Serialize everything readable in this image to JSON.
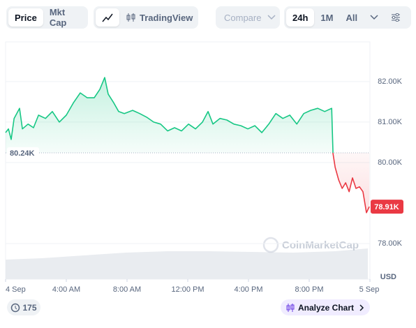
{
  "toolbar": {
    "price": "Price",
    "mkt_cap": "Mkt Cap",
    "tradingview": "TradingView",
    "compare": "Compare",
    "range_24h": "24h",
    "range_1m": "1M",
    "range_all": "All"
  },
  "footer": {
    "count": "175",
    "analyze": "Analyze Chart"
  },
  "chart_data": {
    "type": "line",
    "watermark": "CoinMarketCap",
    "y_unit": "USD",
    "x": [
      0,
      0.19,
      0.37,
      0.56,
      0.92,
      1.11,
      1.48,
      1.84,
      2.17,
      2.63,
      3.08,
      3.54,
      4.0,
      4.46,
      4.92,
      5.38,
      5.84,
      6.21,
      6.53,
      6.76,
      7.13,
      7.45,
      7.82,
      8.37,
      8.83,
      9.29,
      9.75,
      10.21,
      10.67,
      11.13,
      11.59,
      12.05,
      12.51,
      12.97,
      13.34,
      13.66,
      14.12,
      14.58,
      15.04,
      15.5,
      15.96,
      16.42,
      16.88,
      17.34,
      17.8,
      18.26,
      18.72,
      19.18,
      19.64,
      20.1,
      20.56,
      21.02,
      21.48,
      21.57,
      21.71,
      21.94,
      22.17,
      22.4,
      22.63,
      22.85,
      23.08,
      23.31,
      23.54,
      23.77,
      23.96
    ],
    "values": [
      80740,
      80830,
      80570,
      81090,
      81340,
      80830,
      80950,
      80860,
      81170,
      81090,
      81260,
      81000,
      81170,
      81470,
      81720,
      81600,
      81600,
      81810,
      82100,
      81690,
      81470,
      81260,
      81210,
      81290,
      81210,
      81120,
      81000,
      80950,
      80780,
      80860,
      80780,
      80950,
      80830,
      81000,
      81260,
      80950,
      81090,
      81050,
      80950,
      80910,
      80830,
      80910,
      80740,
      80950,
      81210,
      81090,
      81170,
      80950,
      81210,
      81290,
      81340,
      81260,
      81340,
      80220,
      79880,
      79570,
      79360,
      79500,
      79280,
      79620,
      79360,
      79400,
      79280,
      78760,
      78910
    ],
    "up_color": "#16c784",
    "down_color": "#ea3943",
    "reference": {
      "value": 80240,
      "label": "80.24K"
    },
    "current": {
      "value": 78910,
      "label": "78.91K"
    },
    "xlim": [
      0,
      24
    ],
    "xticks": [
      {
        "value": 0,
        "label": "4 Sep"
      },
      {
        "value": 4,
        "label": "4:00 AM"
      },
      {
        "value": 8,
        "label": "8:00 AM"
      },
      {
        "value": 12,
        "label": "12:00 PM"
      },
      {
        "value": 16,
        "label": "4:00 PM"
      },
      {
        "value": 20,
        "label": "8:00 PM"
      },
      {
        "value": 24,
        "label": "5 Sep"
      }
    ],
    "ylim": [
      77120,
      82980
    ],
    "yticks": [
      {
        "value": 78000,
        "label": "78.00K"
      },
      {
        "value": 80000,
        "label": "80.00K"
      },
      {
        "value": 81000,
        "label": "81.00K"
      },
      {
        "value": 82000,
        "label": "82.00K"
      }
    ],
    "grid": true
  }
}
